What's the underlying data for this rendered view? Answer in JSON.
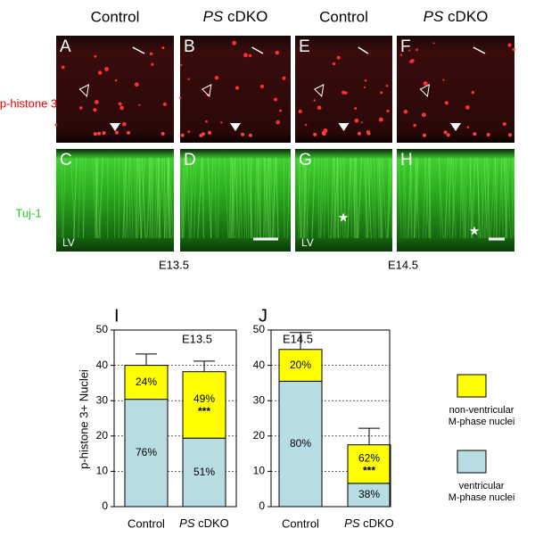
{
  "panels": {
    "headers": [
      "Control",
      "PS cDKO",
      "Control",
      "PS cDKO"
    ],
    "italic_first_word": [
      false,
      true,
      false,
      true
    ],
    "letters": [
      "A",
      "B",
      "E",
      "F",
      "C",
      "D",
      "G",
      "H"
    ],
    "row_labels": [
      "p-histone 3",
      "Tuj-1"
    ],
    "lv_labels": [
      "LV",
      "LV"
    ],
    "stages": [
      "E13.5",
      "E14.5"
    ]
  },
  "chart_data": [
    {
      "type": "bar",
      "panel_letter": "I",
      "title": "E13.5",
      "ylabel": "p-histone 3+ Nuclei",
      "categories": [
        "Control",
        "PS cDKO"
      ],
      "italic_first_word": [
        false,
        true
      ],
      "ylim": [
        0,
        50
      ],
      "yticks": [
        0,
        10,
        20,
        30,
        40,
        50
      ],
      "grid": true,
      "stacked": true,
      "errors": [
        3.2,
        3.0
      ],
      "series": [
        {
          "color": "#b7dde3",
          "values": [
            30.4,
            19.4
          ],
          "percent_labels": [
            "76%",
            "51%"
          ]
        },
        {
          "color": "#ffff00",
          "values": [
            9.6,
            18.8
          ],
          "percent_labels": [
            "24%",
            "49%"
          ],
          "notes": [
            null,
            "***"
          ]
        }
      ]
    },
    {
      "type": "bar",
      "panel_letter": "J",
      "title": "E14.5",
      "categories": [
        "Control",
        "PS cDKO"
      ],
      "italic_first_word": [
        false,
        true
      ],
      "ylim": [
        0,
        50
      ],
      "yticks": [
        0,
        10,
        20,
        30,
        40,
        50
      ],
      "grid": true,
      "stacked": true,
      "errors": [
        4.8,
        4.7
      ],
      "series": [
        {
          "name": "ventricular M-phase nuclei",
          "color": "#b7dde3",
          "values": [
            35.5,
            6.6
          ],
          "percent_labels": [
            "80%",
            "38%"
          ]
        },
        {
          "name": "non-ventricular M-phase nuclei",
          "color": "#ffff00",
          "values": [
            9.0,
            10.9
          ],
          "percent_labels": [
            "20%",
            "62%"
          ],
          "notes": [
            null,
            "***"
          ]
        }
      ]
    }
  ]
}
